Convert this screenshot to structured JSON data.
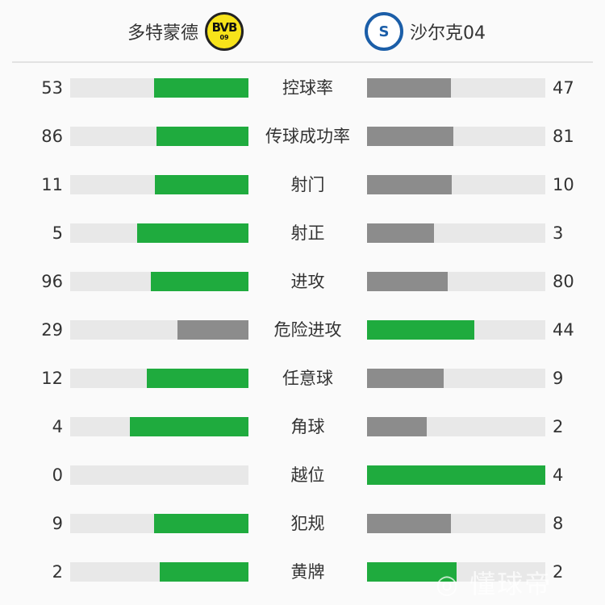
{
  "home": {
    "name": "多特蒙德",
    "logo_text": "BVB",
    "logo_sub": "09",
    "logo_color": "#f7e31a"
  },
  "away": {
    "name": "沙尔克04",
    "logo_text": "S04",
    "logo_color": "#1b5ea8"
  },
  "colors": {
    "leader": "#1fab3e",
    "trailer": "#8c8c8c",
    "track": "#e8e8e8"
  },
  "stats": [
    {
      "label": "控球率",
      "home": 53,
      "away": 47
    },
    {
      "label": "传球成功率",
      "home": 86,
      "away": 81
    },
    {
      "label": "射门",
      "home": 11,
      "away": 10
    },
    {
      "label": "射正",
      "home": 5,
      "away": 3
    },
    {
      "label": "进攻",
      "home": 96,
      "away": 80
    },
    {
      "label": "危险进攻",
      "home": 29,
      "away": 44
    },
    {
      "label": "任意球",
      "home": 12,
      "away": 9
    },
    {
      "label": "角球",
      "home": 4,
      "away": 2
    },
    {
      "label": "越位",
      "home": 0,
      "away": 4
    },
    {
      "label": "犯规",
      "home": 9,
      "away": 8
    },
    {
      "label": "黄牌",
      "home": 2,
      "away": 2
    }
  ],
  "watermark": "懂球帝"
}
